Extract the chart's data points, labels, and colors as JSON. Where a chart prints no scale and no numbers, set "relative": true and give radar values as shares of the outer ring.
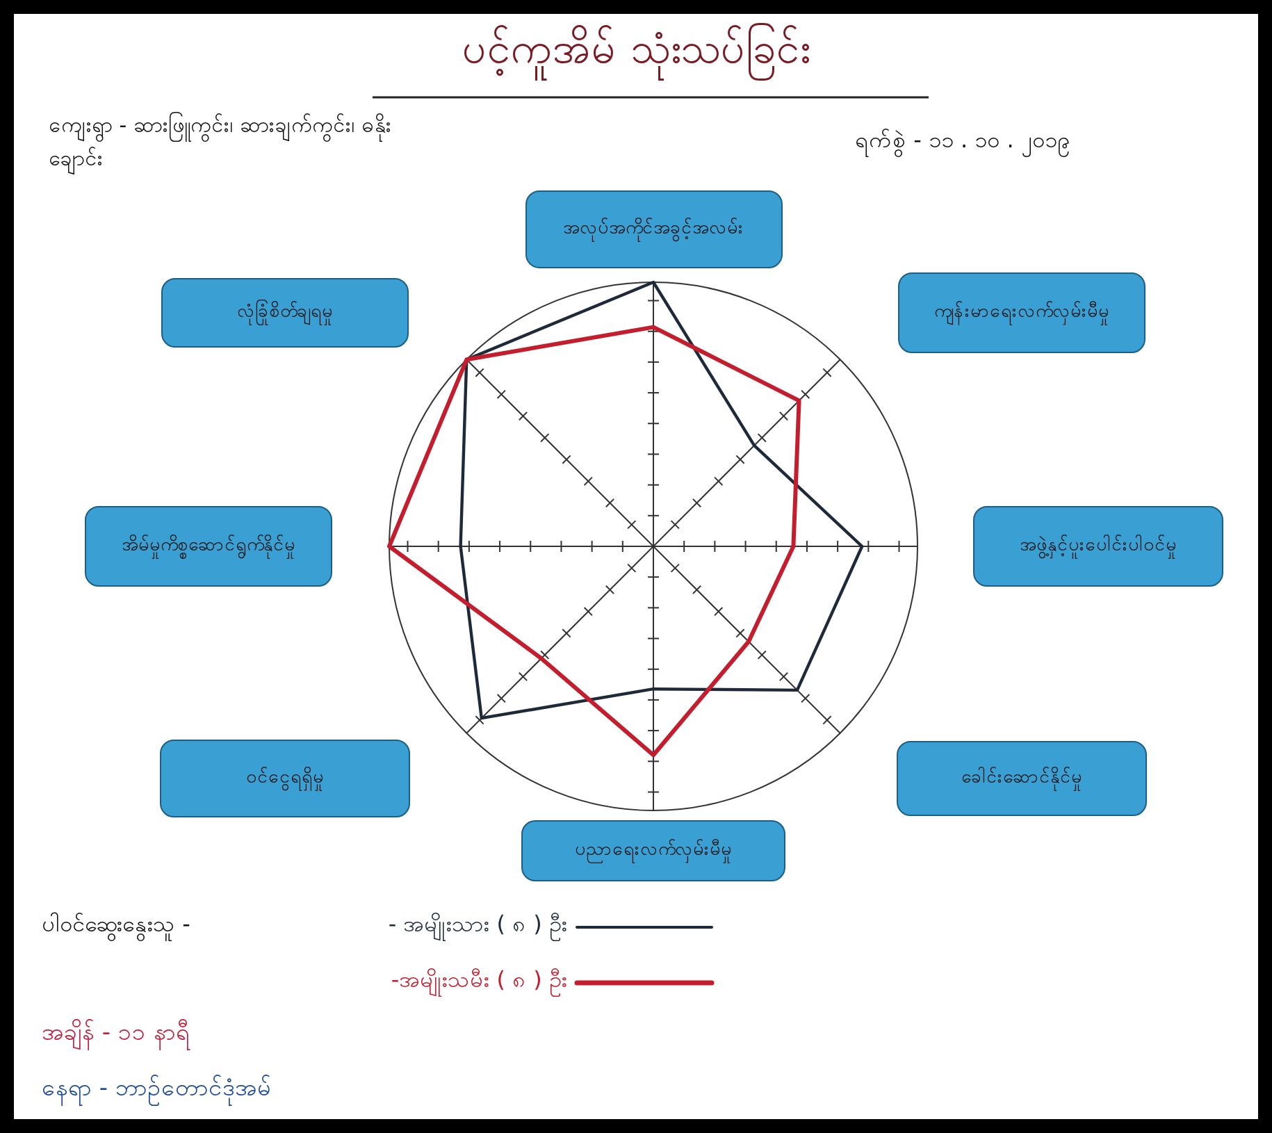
{
  "chart_data": {
    "type": "radar",
    "title": "ပင့်ကူအိမ် သုံးသပ်ခြင်း",
    "categories": [
      "အလုပ်အကိုင်အခွင့်အလမ်း",
      "ကျန်းမာရေးလက်လှမ်းမီမှု",
      "အဖွဲ့နှင့်ပူးပေါင်းပါဝင်မှု",
      "ခေါင်းဆောင်နိုင်မှု",
      "ပညာရေးလက်လှမ်းမီမှု",
      "ဝင်ငွေရရှိမှု",
      "အိမ်မှုကိစ္စဆောင်ရွက်နိုင်မှု",
      "လုံခြုံစိတ်ချရမှု"
    ],
    "relative": true,
    "series": [
      {
        "name": "- အမျိုးသား ( ၈ ) ဦး",
        "color": "#1e2a3a",
        "values": [
          1.0,
          0.54,
          0.79,
          0.77,
          0.54,
          0.92,
          0.73,
          1.0
        ]
      },
      {
        "name": "-အမျိုးသမီး ( ၈ ) ဦး",
        "color": "#c41e2e",
        "values": [
          0.83,
          0.78,
          0.53,
          0.51,
          0.79,
          0.6,
          1.0,
          1.0
        ]
      }
    ],
    "legend_title": "ပါဝင်ဆွေးနွေးသူ -",
    "legend": "bottom",
    "annotations": [
      "ကျေးရွာ - ဆားဖြူကွင်း၊ ဆားချက်ကွင်း၊ ဓနိုးချောင်း",
      "ရက်စွဲ - ၁၁ . ၁၀ . ၂၀၁၉",
      "အချိန် - ၁၁ နာရီ",
      "နေရာ - ဘာဉ်တောင်ဒုံအမ်"
    ]
  }
}
